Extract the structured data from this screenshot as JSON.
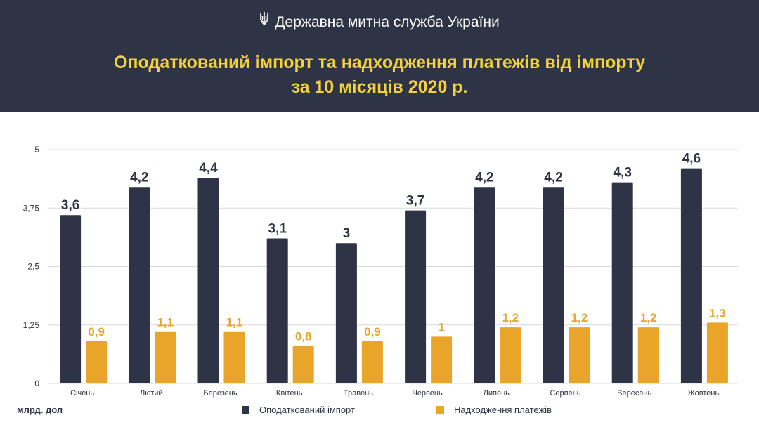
{
  "header": {
    "org": "Державна митна служба України",
    "title_line1": "Оподаткований імпорт та надходження платежів від імпорту",
    "title_line2": "за 10 місяців 2020 р."
  },
  "icons": {
    "org_logo": "trident-icon"
  },
  "colors": {
    "header_bg": "#2f3346",
    "title": "#f2d33a",
    "import": "#2f3346",
    "payments": "#e9a52a"
  },
  "chart_data": {
    "type": "bar",
    "categories": [
      "Січень",
      "Лютий",
      "Березень",
      "Квітень",
      "Травень",
      "Червень",
      "Липень",
      "Серпень",
      "Вересень",
      "Жовтень"
    ],
    "series": [
      {
        "name": "Оподаткований імпорт",
        "values": [
          3.6,
          4.2,
          4.4,
          3.1,
          3,
          3.7,
          4.2,
          4.2,
          4.3,
          4.6
        ],
        "labels": [
          "3,6",
          "4,2",
          "4,4",
          "3,1",
          "3",
          "3,7",
          "4,2",
          "4,2",
          "4,3",
          "4,6"
        ]
      },
      {
        "name": "Надходження платежів",
        "values": [
          0.9,
          1.1,
          1.1,
          0.8,
          0.9,
          1,
          1.2,
          1.2,
          1.2,
          1.3
        ],
        "labels": [
          "0,9",
          "1,1",
          "1,1",
          "0,8",
          "0,9",
          "1",
          "1,2",
          "1,2",
          "1,2",
          "1,3"
        ]
      }
    ],
    "yticks": [
      0,
      1.25,
      2.5,
      3.75,
      5
    ],
    "ytick_labels": [
      "0",
      "1,25",
      "2,5",
      "3,75",
      "5"
    ],
    "ylim": [
      0,
      5
    ],
    "grid": true,
    "unit_label": "млрд. дол",
    "legend_position": "bottom"
  }
}
